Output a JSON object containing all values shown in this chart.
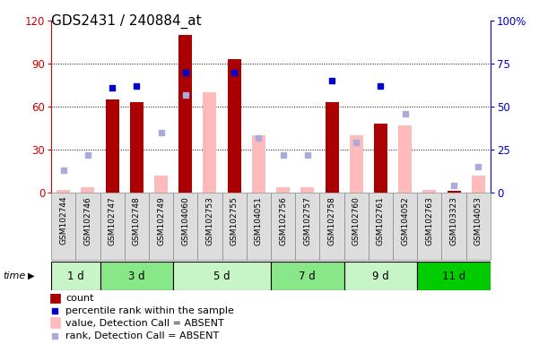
{
  "title": "GDS2431 / 240884_at",
  "samples": [
    "GSM102744",
    "GSM102746",
    "GSM102747",
    "GSM102748",
    "GSM102749",
    "GSM104060",
    "GSM102753",
    "GSM102755",
    "GSM104051",
    "GSM102756",
    "GSM102757",
    "GSM102758",
    "GSM102760",
    "GSM102761",
    "GSM104052",
    "GSM102763",
    "GSM103323",
    "GSM104053"
  ],
  "groups": [
    {
      "label": "1 d",
      "indices": [
        0,
        1
      ],
      "color": "#c8f5c8"
    },
    {
      "label": "3 d",
      "indices": [
        2,
        3,
        4
      ],
      "color": "#88e888"
    },
    {
      "label": "5 d",
      "indices": [
        5,
        6,
        7,
        8
      ],
      "color": "#c8f5c8"
    },
    {
      "label": "7 d",
      "indices": [
        9,
        10,
        11
      ],
      "color": "#88e888"
    },
    {
      "label": "9 d",
      "indices": [
        12,
        13,
        14
      ],
      "color": "#c8f5c8"
    },
    {
      "label": "11 d",
      "indices": [
        15,
        16,
        17
      ],
      "color": "#00cc00"
    }
  ],
  "count_values": [
    1,
    2,
    65,
    63,
    0,
    110,
    0,
    93,
    0,
    0,
    0,
    63,
    0,
    48,
    0,
    0,
    1,
    0
  ],
  "percentile_rank": [
    null,
    null,
    61,
    62,
    null,
    70,
    null,
    70,
    null,
    null,
    null,
    65,
    null,
    62,
    null,
    null,
    null,
    null
  ],
  "absent_value": [
    2,
    4,
    null,
    null,
    12,
    null,
    70,
    null,
    40,
    4,
    4,
    null,
    40,
    null,
    47,
    2,
    null,
    12
  ],
  "absent_rank": [
    13,
    22,
    null,
    null,
    35,
    57,
    null,
    null,
    32,
    22,
    22,
    null,
    29,
    null,
    46,
    null,
    4,
    15
  ],
  "ylim_left": [
    0,
    120
  ],
  "ylim_right": [
    0,
    100
  ],
  "yticks_left": [
    0,
    30,
    60,
    90,
    120
  ],
  "yticks_right": [
    0,
    25,
    50,
    75,
    100
  ],
  "bar_color_count": "#aa0000",
  "bar_color_absent": "#ffbbbb",
  "dot_color_percentile": "#0000cc",
  "dot_color_absent_rank": "#aaaadd",
  "title_fontsize": 11,
  "tick_fontsize": 7,
  "legend_fontsize": 8,
  "axis_color_left": "#cc0000",
  "axis_color_right": "#0000cc",
  "grid_lines": [
    30,
    60,
    90
  ]
}
